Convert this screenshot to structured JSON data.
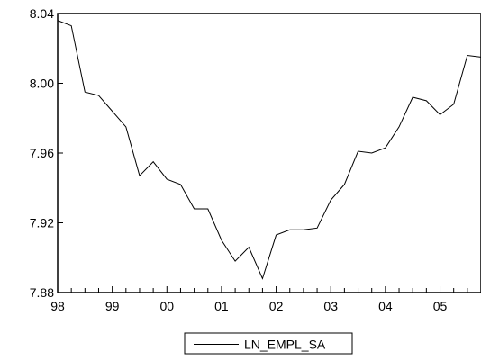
{
  "chart_data": {
    "type": "line",
    "title": "",
    "xlabel": "",
    "ylabel": "",
    "x_tick_labels": [
      "98",
      "99",
      "00",
      "01",
      "02",
      "03",
      "04",
      "05"
    ],
    "y_tick_labels": [
      "7.88",
      "7.92",
      "7.96",
      "8.00",
      "8.04"
    ],
    "y_ticks": [
      7.88,
      7.92,
      7.96,
      8.0,
      8.04
    ],
    "ylim": [
      7.88,
      8.04
    ],
    "xlim": [
      1998.0,
      2005.75
    ],
    "grid": false,
    "legend_position": "bottom-center",
    "series": [
      {
        "name": "LN_EMPL_SA",
        "color": "#000000",
        "points": [
          {
            "x": 1998.0,
            "y": 8.036
          },
          {
            "x": 1998.25,
            "y": 8.033
          },
          {
            "x": 1998.5,
            "y": 7.995
          },
          {
            "x": 1998.75,
            "y": 7.993
          },
          {
            "x": 1999.0,
            "y": 7.984
          },
          {
            "x": 1999.25,
            "y": 7.975
          },
          {
            "x": 1999.5,
            "y": 7.947
          },
          {
            "x": 1999.75,
            "y": 7.955
          },
          {
            "x": 2000.0,
            "y": 7.945
          },
          {
            "x": 2000.25,
            "y": 7.942
          },
          {
            "x": 2000.5,
            "y": 7.928
          },
          {
            "x": 2000.75,
            "y": 7.928
          },
          {
            "x": 2001.0,
            "y": 7.91
          },
          {
            "x": 2001.25,
            "y": 7.898
          },
          {
            "x": 2001.5,
            "y": 7.906
          },
          {
            "x": 2001.75,
            "y": 7.888
          },
          {
            "x": 2002.0,
            "y": 7.913
          },
          {
            "x": 2002.25,
            "y": 7.916
          },
          {
            "x": 2002.5,
            "y": 7.916
          },
          {
            "x": 2002.75,
            "y": 7.917
          },
          {
            "x": 2003.0,
            "y": 7.933
          },
          {
            "x": 2003.25,
            "y": 7.942
          },
          {
            "x": 2003.5,
            "y": 7.961
          },
          {
            "x": 2003.75,
            "y": 7.96
          },
          {
            "x": 2004.0,
            "y": 7.963
          },
          {
            "x": 2004.25,
            "y": 7.975
          },
          {
            "x": 2004.5,
            "y": 7.992
          },
          {
            "x": 2004.75,
            "y": 7.99
          },
          {
            "x": 2005.0,
            "y": 7.982
          },
          {
            "x": 2005.25,
            "y": 7.988
          },
          {
            "x": 2005.5,
            "y": 8.016
          },
          {
            "x": 2005.75,
            "y": 8.015
          }
        ]
      }
    ]
  }
}
